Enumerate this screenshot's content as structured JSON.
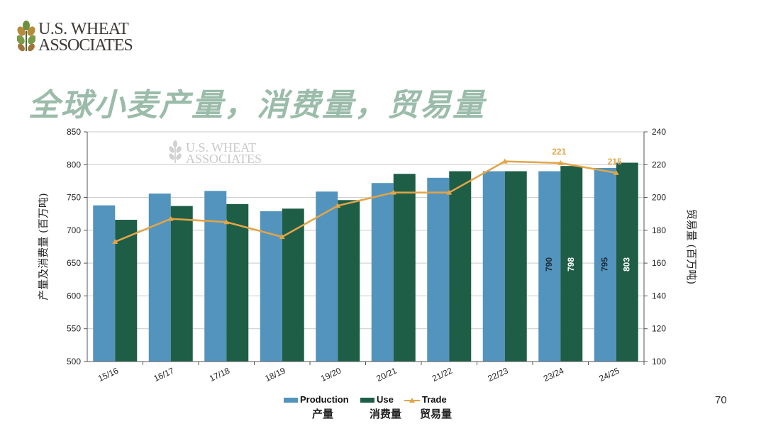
{
  "logo": {
    "line1": "U.S. WHEAT",
    "line2": "ASSOCIATES"
  },
  "watermark": {
    "line1": "U.S. WHEAT",
    "line2": "ASSOCIATES"
  },
  "title": "全球小麦产量，消费量，贸易量",
  "page_number": "70",
  "legend": {
    "production": "Production",
    "use": "Use",
    "trade": "Trade",
    "production_cn": "产量",
    "use_cn": "消费量",
    "trade_cn": "贸易量"
  },
  "colors": {
    "production": "#5294bd",
    "use": "#1e5e46",
    "trade": "#e3a447",
    "title": "#9bbcaa"
  },
  "chart_data": {
    "type": "bar",
    "categories": [
      "15/16",
      "16/17",
      "17/18",
      "18/19",
      "19/20",
      "20/21",
      "21/22",
      "22/23",
      "23/24",
      "24/25"
    ],
    "series": [
      {
        "name": "Production",
        "axis": "left",
        "type": "bar",
        "values": [
          738,
          756,
          760,
          729,
          759,
          772,
          780,
          790,
          790,
          795
        ]
      },
      {
        "name": "Use",
        "axis": "left",
        "type": "bar",
        "values": [
          716,
          737,
          740,
          733,
          746,
          786,
          790,
          790,
          798,
          803
        ]
      },
      {
        "name": "Trade",
        "axis": "right",
        "type": "line",
        "values": [
          173,
          187,
          185,
          176,
          195,
          203,
          203,
          222,
          221,
          215
        ]
      }
    ],
    "bar_labels": [
      {
        "category": "23/24",
        "series": "Production",
        "text": "790"
      },
      {
        "category": "23/24",
        "series": "Use",
        "text": "798"
      },
      {
        "category": "24/25",
        "series": "Production",
        "text": "795"
      },
      {
        "category": "24/25",
        "series": "Use",
        "text": "803"
      }
    ],
    "line_labels": [
      {
        "category": "23/24",
        "text": "221"
      },
      {
        "category": "24/25",
        "text": "215"
      }
    ],
    "ylabel": "产量及消费量 (百万吨)",
    "y2label": "贸易量 (百万吨)",
    "ylim": [
      500,
      850
    ],
    "y2lim": [
      100,
      240
    ],
    "yticks": [
      "500",
      "550",
      "600",
      "650",
      "700",
      "750",
      "800",
      "850"
    ],
    "y2ticks": [
      "100",
      "120",
      "140",
      "160",
      "180",
      "200",
      "220",
      "240"
    ],
    "grid": true,
    "legend_position": "bottom"
  }
}
